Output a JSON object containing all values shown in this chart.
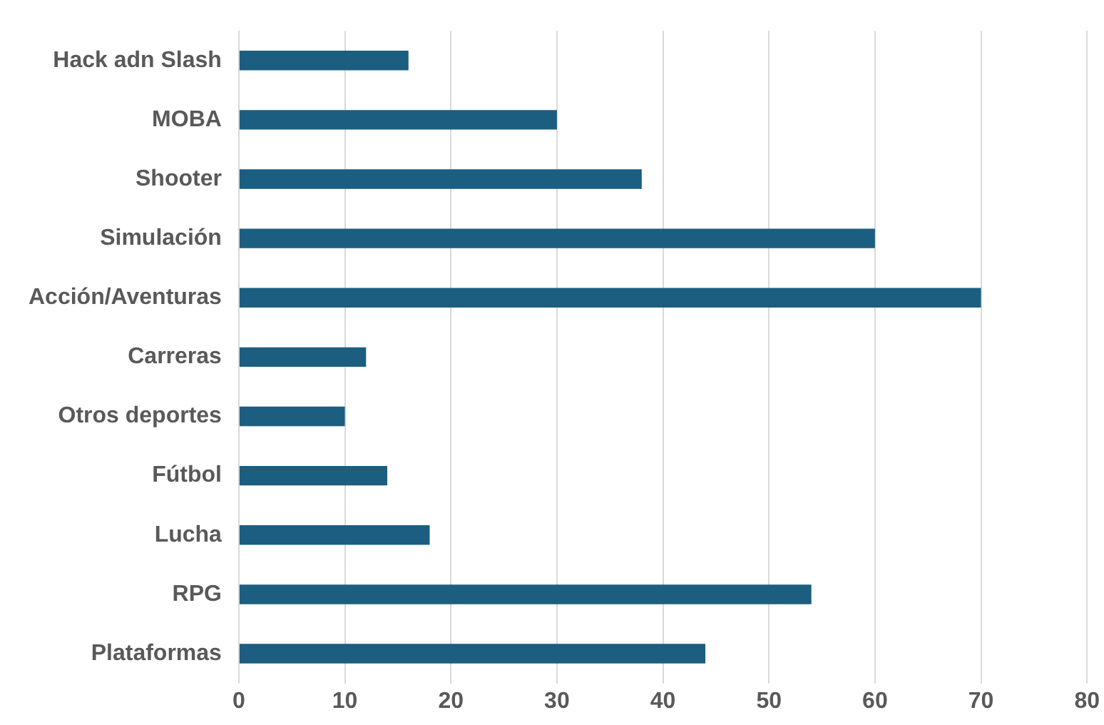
{
  "chart_data": {
    "type": "bar",
    "orientation": "horizontal",
    "categories": [
      "Hack adn Slash",
      "MOBA",
      "Shooter",
      "Simulación",
      "Acción/Aventuras",
      "Carreras",
      "Otros deportes",
      "Fútbol",
      "Lucha",
      "RPG",
      "Plataformas"
    ],
    "values": [
      16,
      30,
      38,
      60,
      70,
      12,
      10,
      14,
      18,
      54,
      44
    ],
    "color": "#1b5e80",
    "xlim": [
      0,
      80
    ],
    "xticks": [
      0,
      10,
      20,
      30,
      40,
      50,
      60,
      70,
      80
    ],
    "grid": "x"
  }
}
